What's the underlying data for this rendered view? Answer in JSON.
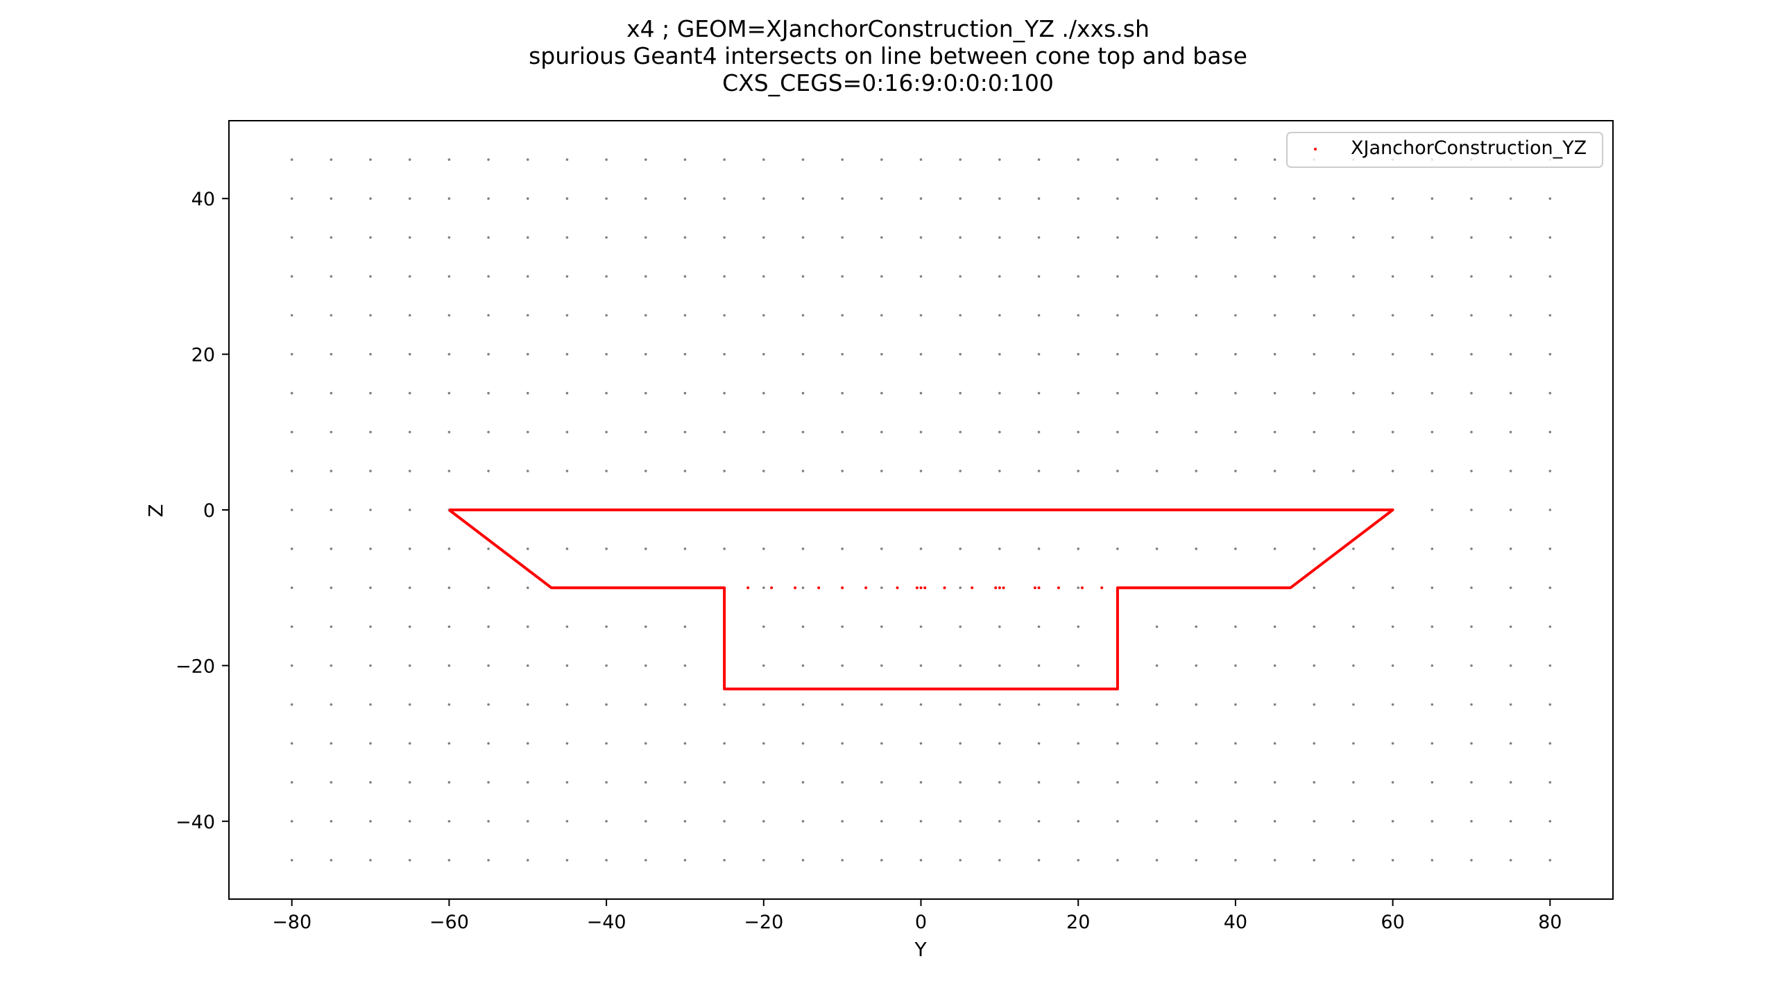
{
  "chart_data": {
    "type": "scatter",
    "title_lines": [
      "x4 ; GEOM=XJanchorConstruction_YZ ./xxs.sh",
      "spurious Geant4 intersects on line between cone top and base",
      "CXS_CEGS=0:16:9:0:0:0:100"
    ],
    "xlabel": "Y",
    "ylabel": "Z",
    "xlim": [
      -88,
      88
    ],
    "ylim": [
      -50,
      50
    ],
    "xticks": [
      -80,
      -60,
      -40,
      -20,
      0,
      20,
      40,
      60,
      80
    ],
    "yticks": [
      -40,
      -20,
      0,
      20,
      40
    ],
    "xtick_labels": [
      "−80",
      "−60",
      "−40",
      "−20",
      "0",
      "20",
      "40",
      "60",
      "80"
    ],
    "ytick_labels": [
      "−40",
      "−20",
      "0",
      "20",
      "40"
    ],
    "grid": false,
    "legend": {
      "position": "top-right",
      "entries": [
        "XJanchorConstruction_YZ"
      ]
    },
    "colors": {
      "series": "#ff0000",
      "gensteps": "#808080"
    },
    "gensteps": {
      "x_min": -80,
      "x_max": 80,
      "x_step": 5,
      "y_min": -45,
      "y_max": 45,
      "y_step": 5
    },
    "series": [
      {
        "name": "XJanchorConstruction_YZ",
        "outline": [
          [
            -60,
            0
          ],
          [
            60,
            0
          ],
          [
            47,
            -10
          ],
          [
            25,
            -10
          ],
          [
            25,
            -23
          ],
          [
            -25,
            -23
          ],
          [
            -25,
            -10
          ],
          [
            -47,
            -10
          ],
          [
            -60,
            0
          ]
        ],
        "spurious_points": [
          [
            -22,
            -10
          ],
          [
            -19,
            -10
          ],
          [
            -16,
            -10
          ],
          [
            -13,
            -10
          ],
          [
            -10,
            -10
          ],
          [
            -7,
            -10
          ],
          [
            -3,
            -10
          ],
          [
            -0.5,
            -10
          ],
          [
            0,
            -10
          ],
          [
            0.5,
            -10
          ],
          [
            3,
            -10
          ],
          [
            6.5,
            -10
          ],
          [
            9.5,
            -10
          ],
          [
            10,
            -10
          ],
          [
            10.5,
            -10
          ],
          [
            14.5,
            -10
          ],
          [
            15,
            -10
          ],
          [
            17.5,
            -10
          ],
          [
            20.5,
            -10
          ],
          [
            23,
            -10
          ]
        ]
      }
    ]
  }
}
